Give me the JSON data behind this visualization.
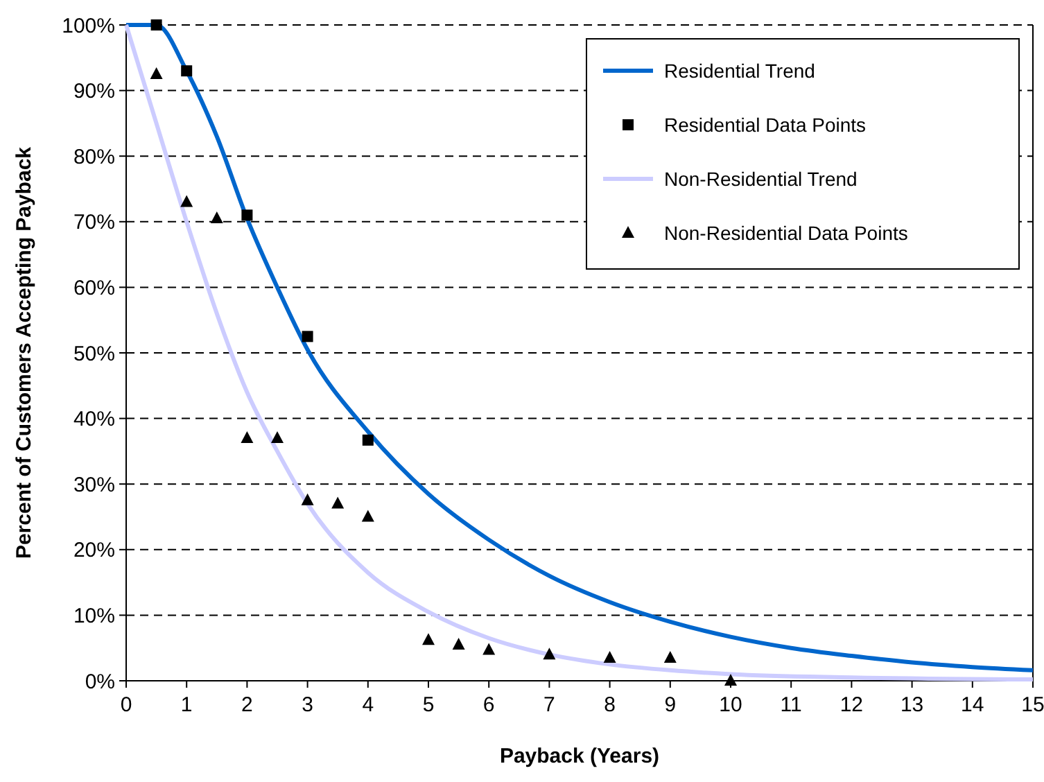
{
  "chart_data": {
    "type": "line",
    "xlabel": "Payback (Years)",
    "ylabel": "Percent of Customers Accepting Payback",
    "xlim": [
      0,
      15
    ],
    "xticks": [
      0,
      1,
      2,
      3,
      4,
      5,
      6,
      7,
      8,
      9,
      10,
      11,
      12,
      13,
      14,
      15
    ],
    "ylim": [
      0,
      100
    ],
    "yticks": [
      {
        "value": 0,
        "label": "0%"
      },
      {
        "value": 10,
        "label": "10%"
      },
      {
        "value": 20,
        "label": "20%"
      },
      {
        "value": 30,
        "label": "30%"
      },
      {
        "value": 40,
        "label": "40%"
      },
      {
        "value": 50,
        "label": "50%"
      },
      {
        "value": 60,
        "label": "60%"
      },
      {
        "value": 70,
        "label": "70%"
      },
      {
        "value": 80,
        "label": "80%"
      },
      {
        "value": 90,
        "label": "90%"
      },
      {
        "value": 100,
        "label": "100%"
      }
    ],
    "grid": "y",
    "legend": "top right",
    "series": [
      {
        "name": "Residential Trend",
        "color": "#0066cc",
        "marker": "none",
        "x": [
          0,
          0.5,
          1,
          1.5,
          2,
          2.5,
          3,
          4,
          5,
          6,
          7,
          8,
          9,
          10,
          11,
          12,
          13,
          14,
          15
        ],
        "values": [
          100,
          100,
          93,
          83,
          70.5,
          60,
          50.5,
          38,
          28.5,
          21.5,
          16,
          12,
          9,
          6.7,
          5,
          3.8,
          2.8,
          2.1,
          1.6
        ]
      },
      {
        "name": "Residential Data Points",
        "type": "scatter",
        "color": "#000000",
        "marker": "square",
        "x": [
          0.5,
          1,
          2,
          3,
          4
        ],
        "values": [
          100,
          93,
          71,
          52.5,
          36.7
        ]
      },
      {
        "name": "Non-Residential Trend",
        "color": "#ccccff",
        "marker": "none",
        "x": [
          0,
          0.5,
          1,
          1.5,
          2,
          2.5,
          3,
          4,
          5,
          6,
          7,
          8,
          9,
          10,
          12,
          15
        ],
        "values": [
          100,
          85,
          70,
          56,
          44,
          35,
          27,
          16.5,
          10.5,
          6.5,
          4,
          2.5,
          1.6,
          1,
          0.5,
          0.2
        ]
      },
      {
        "name": "Non-Residential Data Points",
        "type": "scatter",
        "color": "#000000",
        "marker": "triangle",
        "x": [
          0.5,
          1,
          1.5,
          2,
          2.5,
          3,
          3.5,
          4,
          5,
          5.5,
          6,
          7,
          8,
          9,
          10
        ],
        "values": [
          92.5,
          73,
          70.5,
          37,
          37,
          27.5,
          27,
          25,
          6.2,
          5.5,
          4.7,
          4,
          3.5,
          3.5,
          0
        ]
      }
    ]
  }
}
